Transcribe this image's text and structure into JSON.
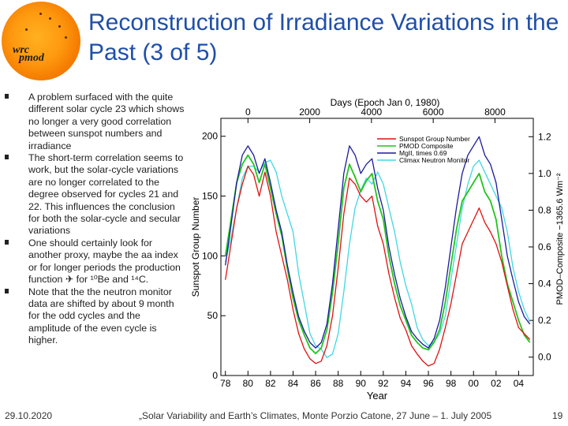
{
  "logo": {
    "line1": "wrc",
    "line2": "pmod"
  },
  "title": "Reconstruction of Irradiance Variations in the Past (3 of 5)",
  "bullets": [
    "A problem surfaced with the quite different solar cycle 23 which shows no longer a very good correlation between sunspot numbers and irradiance",
    "The short-term correlation seems to work, but the solar-cycle variations are no longer correlated to the degree observed for cycles 21 and 22. This influences the conclusion for both the solar-cycle and secular variations",
    "One should certainly look for another proxy, maybe the aa index or for longer periods the production function ✈ for ¹⁰Be and ¹⁴C.",
    "Note that the the neutron monitor data are shifted by about 9 month for the odd cycles and the amplitude of the even cycle is higher."
  ],
  "footer": {
    "date": "29.10.2020",
    "text": "„Solar Variability and Earth’s Climates, Monte Porzio Catone, 27 June – 1. July 2005",
    "page": "19"
  },
  "chart_data": {
    "type": "line",
    "top_axis_label": "Days (Epoch Jan 0, 1980)",
    "top_ticks": [
      "0",
      "2000",
      "4000",
      "6000",
      "8000"
    ],
    "top_tick_values": [
      0,
      2000,
      4000,
      6000,
      8000
    ],
    "xlabel": "Year",
    "x_ticks": [
      "78",
      "80",
      "82",
      "84",
      "86",
      "88",
      "90",
      "92",
      "94",
      "96",
      "98",
      "00",
      "02",
      "04"
    ],
    "x_tick_values": [
      1978,
      1980,
      1982,
      1984,
      1986,
      1988,
      1990,
      1992,
      1994,
      1996,
      1998,
      2000,
      2002,
      2004
    ],
    "xlim": [
      1977.6,
      2005.3
    ],
    "ylabel_left": "Sunspot Group Number",
    "y_left_ticks": [
      "0",
      "50",
      "100",
      "150",
      "200"
    ],
    "y_left_tick_values": [
      0,
      50,
      100,
      150,
      200
    ],
    "ylim_left": [
      0,
      215
    ],
    "ylabel_right": "PMOD–Composite −1365.6 Wm⁻²",
    "y_right_ticks": [
      "0.0",
      "0.2",
      "0.4",
      "0.6",
      "0.8",
      "1.0",
      "1.2"
    ],
    "y_right_tick_values": [
      0.0,
      0.2,
      0.4,
      0.6,
      0.8,
      1.0,
      1.2
    ],
    "ylim_right": [
      -0.1,
      1.3
    ],
    "legend_position": "top-right",
    "series": [
      {
        "name": "Sunspot Group Number",
        "color": "#e01010",
        "x": [
          1978.0,
          1978.5,
          1979.0,
          1979.5,
          1980.0,
          1980.5,
          1981.0,
          1981.5,
          1982.0,
          1982.5,
          1983.0,
          1983.5,
          1984.0,
          1984.5,
          1985.0,
          1985.5,
          1986.0,
          1986.5,
          1987.0,
          1987.5,
          1988.0,
          1988.5,
          1989.0,
          1989.5,
          1990.0,
          1990.5,
          1991.0,
          1991.5,
          1992.0,
          1992.5,
          1993.0,
          1993.5,
          1994.0,
          1994.5,
          1995.0,
          1995.5,
          1996.0,
          1996.5,
          1997.0,
          1997.5,
          1998.0,
          1998.5,
          1999.0,
          1999.5,
          2000.0,
          2000.5,
          2001.0,
          2001.5,
          2002.0,
          2002.5,
          2003.0,
          2003.5,
          2004.0,
          2004.5,
          2005.0
        ],
        "values": [
          80,
          110,
          140,
          160,
          175,
          168,
          150,
          170,
          150,
          120,
          100,
          80,
          55,
          35,
          22,
          14,
          10,
          12,
          25,
          50,
          90,
          135,
          165,
          160,
          150,
          145,
          150,
          125,
          110,
          85,
          65,
          48,
          38,
          25,
          18,
          12,
          8,
          10,
          22,
          40,
          60,
          85,
          110,
          120,
          130,
          140,
          128,
          120,
          110,
          95,
          75,
          55,
          40,
          35,
          30
        ]
      },
      {
        "name": "PMOD Composite",
        "color": "#22c41c",
        "x": [
          1978.0,
          1978.5,
          1979.0,
          1979.5,
          1980.0,
          1980.5,
          1981.0,
          1981.5,
          1982.0,
          1982.5,
          1983.0,
          1983.5,
          1984.0,
          1984.5,
          1985.0,
          1985.5,
          1986.0,
          1986.5,
          1987.0,
          1987.5,
          1988.0,
          1988.5,
          1989.0,
          1989.5,
          1990.0,
          1990.5,
          1991.0,
          1991.5,
          1992.0,
          1992.5,
          1993.0,
          1993.5,
          1994.0,
          1994.5,
          1995.0,
          1995.5,
          1996.0,
          1996.5,
          1997.0,
          1997.5,
          1998.0,
          1998.5,
          1999.0,
          1999.5,
          2000.0,
          2000.5,
          2001.0,
          2001.5,
          2002.0,
          2002.5,
          2003.0,
          2003.5,
          2004.0,
          2004.5,
          2005.0
        ],
        "values": [
          0.55,
          0.75,
          0.95,
          1.05,
          1.1,
          1.05,
          0.95,
          1.05,
          0.92,
          0.78,
          0.66,
          0.48,
          0.32,
          0.2,
          0.12,
          0.05,
          0.02,
          0.05,
          0.15,
          0.35,
          0.62,
          0.92,
          1.05,
          0.98,
          0.9,
          0.96,
          1.0,
          0.85,
          0.75,
          0.55,
          0.4,
          0.28,
          0.2,
          0.12,
          0.08,
          0.05,
          0.04,
          0.08,
          0.15,
          0.3,
          0.5,
          0.7,
          0.85,
          0.9,
          0.95,
          1.0,
          0.9,
          0.85,
          0.75,
          0.55,
          0.4,
          0.3,
          0.2,
          0.12,
          0.08
        ]
      },
      {
        "name": "MgII, times 0.69",
        "color": "#1a1aa0",
        "x": [
          1978.0,
          1978.5,
          1979.0,
          1979.5,
          1980.0,
          1980.5,
          1981.0,
          1981.5,
          1982.0,
          1982.5,
          1983.0,
          1983.5,
          1984.0,
          1984.5,
          1985.0,
          1985.5,
          1986.0,
          1986.5,
          1987.0,
          1987.5,
          1988.0,
          1988.5,
          1989.0,
          1989.5,
          1990.0,
          1990.5,
          1991.0,
          1991.5,
          1992.0,
          1992.5,
          1993.0,
          1993.5,
          1994.0,
          1994.5,
          1995.0,
          1995.5,
          1996.0,
          1996.5,
          1997.0,
          1997.5,
          1998.0,
          1998.5,
          1999.0,
          1999.5,
          2000.0,
          2000.5,
          2001.0,
          2001.5,
          2002.0,
          2002.5,
          2003.0,
          2003.5,
          2004.0,
          2004.5,
          2005.0
        ],
        "values": [
          0.5,
          0.72,
          0.95,
          1.1,
          1.15,
          1.1,
          1.0,
          1.08,
          0.95,
          0.8,
          0.68,
          0.5,
          0.35,
          0.22,
          0.14,
          0.08,
          0.05,
          0.08,
          0.18,
          0.4,
          0.7,
          1.0,
          1.15,
          1.1,
          1.0,
          1.05,
          1.08,
          0.92,
          0.8,
          0.6,
          0.45,
          0.32,
          0.22,
          0.14,
          0.1,
          0.07,
          0.05,
          0.1,
          0.2,
          0.38,
          0.6,
          0.82,
          1.0,
          1.1,
          1.15,
          1.2,
          1.1,
          1.05,
          0.95,
          0.75,
          0.55,
          0.42,
          0.3,
          0.22,
          0.18
        ]
      },
      {
        "name": "Climax Neutron Monitor",
        "color": "#40d8e0",
        "x": [
          1978.0,
          1978.5,
          1979.0,
          1979.5,
          1980.0,
          1980.5,
          1981.0,
          1981.5,
          1982.0,
          1982.5,
          1983.0,
          1983.5,
          1984.0,
          1984.5,
          1985.0,
          1985.5,
          1986.0,
          1986.5,
          1987.0,
          1987.5,
          1988.0,
          1988.5,
          1989.0,
          1989.5,
          1990.0,
          1990.5,
          1991.0,
          1991.5,
          1992.0,
          1992.5,
          1993.0,
          1993.5,
          1994.0,
          1994.5,
          1995.0,
          1995.5,
          1996.0,
          1996.5,
          1997.0,
          1997.5,
          1998.0,
          1998.5,
          1999.0,
          1999.5,
          2000.0,
          2000.5,
          2001.0,
          2001.5,
          2002.0,
          2002.5,
          2003.0,
          2003.5,
          2004.0,
          2004.5,
          2005.0
        ],
        "values": [
          95,
          115,
          140,
          165,
          175,
          175,
          170,
          178,
          180,
          170,
          150,
          135,
          120,
          85,
          60,
          35,
          25,
          22,
          15,
          18,
          35,
          70,
          110,
          140,
          155,
          165,
          160,
          170,
          160,
          140,
          120,
          95,
          75,
          60,
          40,
          30,
          25,
          28,
          35,
          50,
          80,
          110,
          140,
          160,
          175,
          180,
          170,
          160,
          150,
          140,
          120,
          90,
          70,
          55,
          45
        ]
      }
    ]
  }
}
